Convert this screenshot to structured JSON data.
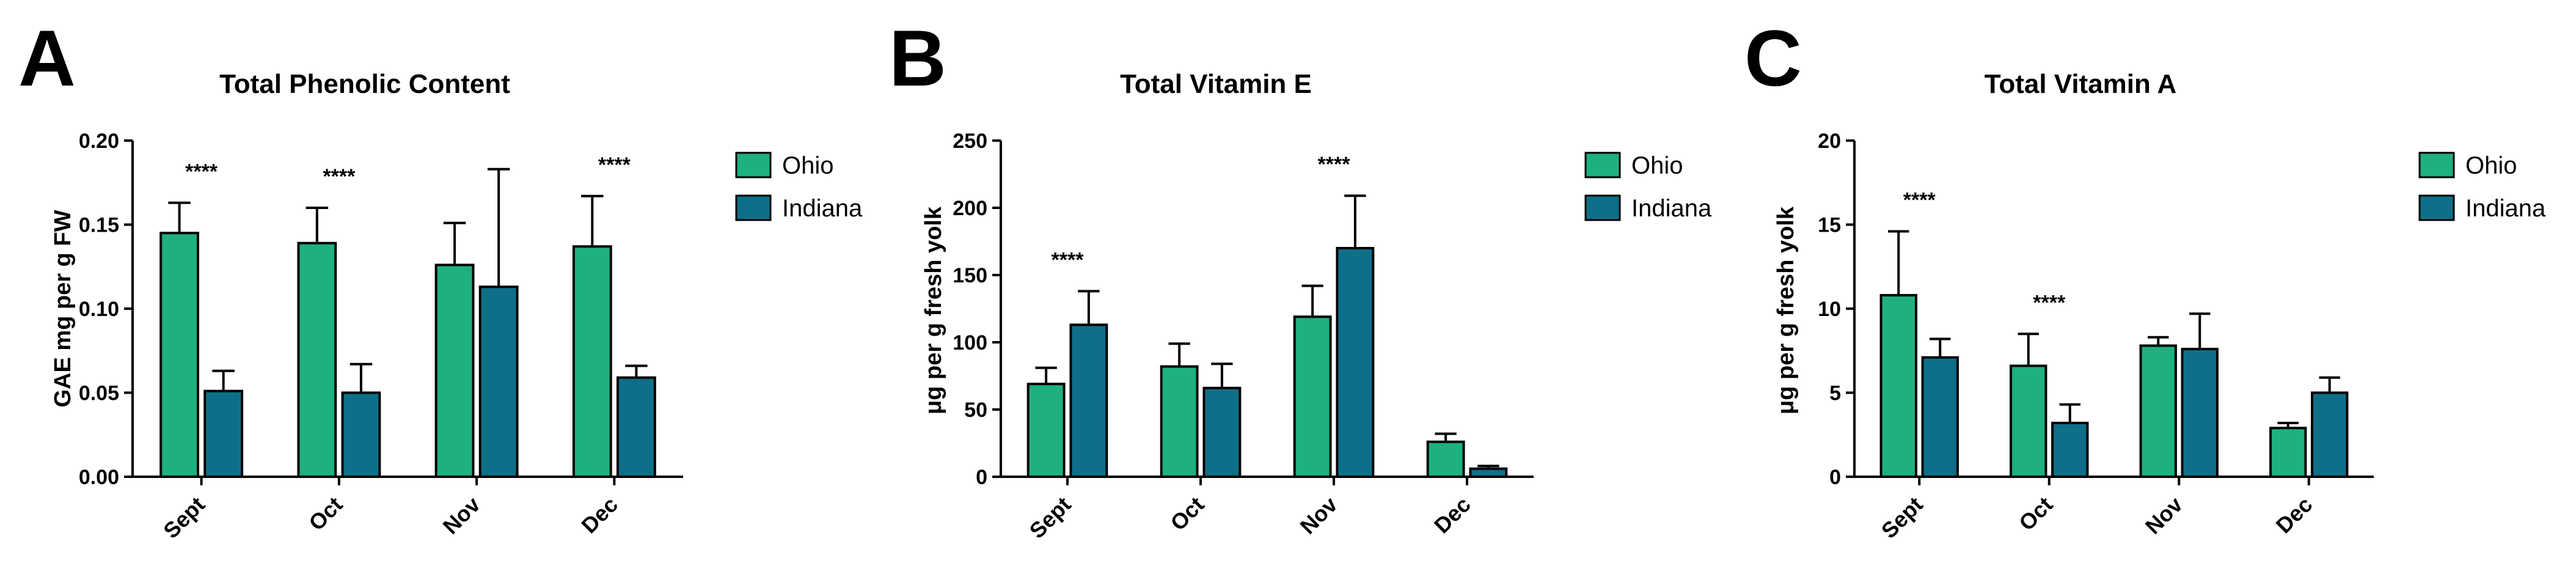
{
  "colors": {
    "ohio": "#1eb07f",
    "indiana": "#0f6f88",
    "axis": "#000000"
  },
  "chart_data": [
    {
      "panel": "A",
      "type": "bar",
      "title": "Total Phenolic Content",
      "ylabel": "GAE mg per g FW",
      "ylabel_prefix": "",
      "ylim": [
        0,
        0.2
      ],
      "yticks": [
        "0.00",
        "0.05",
        "0.10",
        "0.15",
        "0.20"
      ],
      "ytick_values": [
        0,
        0.05,
        0.1,
        0.15,
        0.2
      ],
      "categories": [
        "Sept",
        "Oct",
        "Nov",
        "Dec"
      ],
      "legend": [
        "Ohio",
        "Indiana"
      ],
      "series": [
        {
          "name": "Ohio",
          "values": [
            0.145,
            0.139,
            0.126,
            0.137
          ],
          "errors": [
            0.018,
            0.021,
            0.025,
            0.03
          ]
        },
        {
          "name": "Indiana",
          "values": [
            0.051,
            0.05,
            0.113,
            0.059
          ],
          "errors": [
            0.012,
            0.017,
            0.07,
            0.007
          ]
        }
      ],
      "annotations": [
        {
          "category": "Sept",
          "text": "****"
        },
        {
          "category": "Oct",
          "text": "****"
        },
        {
          "category": "Dec",
          "text": "****"
        }
      ]
    },
    {
      "panel": "B",
      "type": "bar",
      "title": "Total Vitamin E",
      "ylabel": "g per g fresh yolk",
      "ylabel_prefix": "μ",
      "ylim": [
        0,
        250
      ],
      "yticks": [
        "0",
        "50",
        "100",
        "150",
        "200",
        "250"
      ],
      "ytick_values": [
        0,
        50,
        100,
        150,
        200,
        250
      ],
      "categories": [
        "Sept",
        "Oct",
        "Nov",
        "Dec"
      ],
      "legend": [
        "Ohio",
        "Indiana"
      ],
      "series": [
        {
          "name": "Ohio",
          "values": [
            69,
            82,
            119,
            26
          ],
          "errors": [
            12,
            17,
            23,
            6
          ]
        },
        {
          "name": "Indiana",
          "values": [
            113,
            66,
            170,
            6
          ],
          "errors": [
            25,
            18,
            39,
            2
          ]
        }
      ],
      "annotations": [
        {
          "category": "Sept",
          "text": "****"
        },
        {
          "category": "Nov",
          "text": "****"
        }
      ]
    },
    {
      "panel": "C",
      "type": "bar",
      "title": "Total Vitamin A",
      "ylabel": "g per g fresh yolk",
      "ylabel_prefix": "μ",
      "ylim": [
        0,
        20
      ],
      "yticks": [
        "0",
        "5",
        "10",
        "15",
        "20"
      ],
      "ytick_values": [
        0,
        5,
        10,
        15,
        20
      ],
      "categories": [
        "Sept",
        "Oct",
        "Nov",
        "Dec"
      ],
      "legend": [
        "Ohio",
        "Indiana"
      ],
      "series": [
        {
          "name": "Ohio",
          "values": [
            10.8,
            6.6,
            7.8,
            2.9
          ],
          "errors": [
            3.8,
            1.9,
            0.5,
            0.3
          ]
        },
        {
          "name": "Indiana",
          "values": [
            7.1,
            3.2,
            7.6,
            5.0
          ],
          "errors": [
            1.1,
            1.1,
            2.1,
            0.9
          ]
        }
      ],
      "annotations": [
        {
          "category": "Sept",
          "text": "****"
        },
        {
          "category": "Oct",
          "text": "****"
        }
      ]
    }
  ]
}
